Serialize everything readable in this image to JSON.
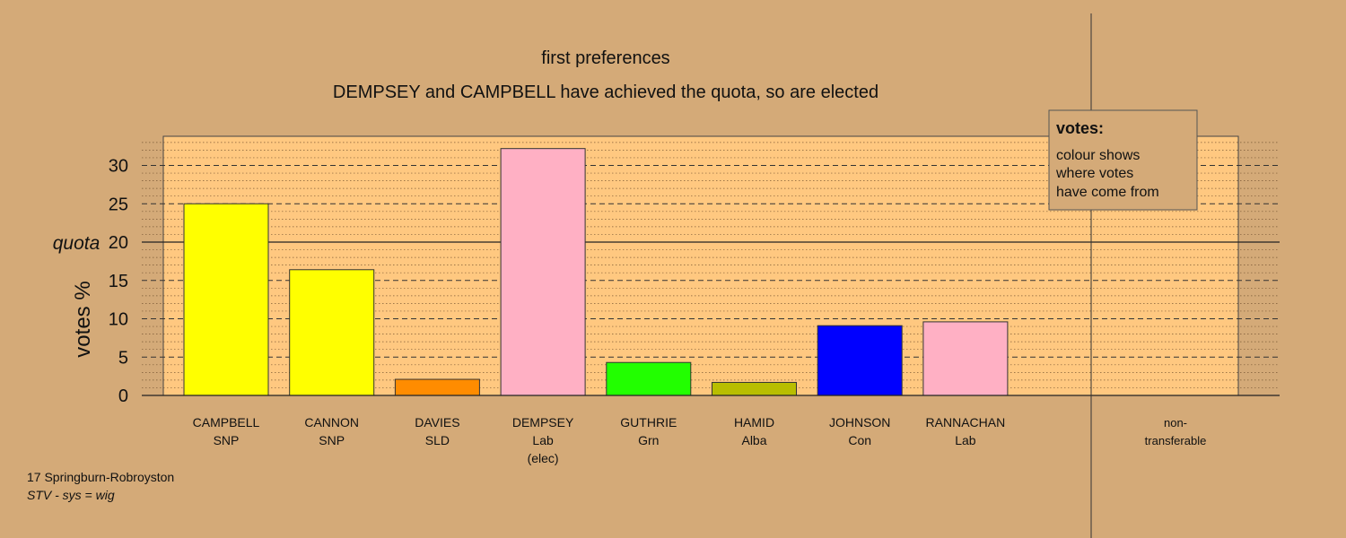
{
  "chart_data": {
    "type": "bar",
    "title": "first preferences",
    "subtitle": "DEMPSEY and CAMPBELL have achieved the quota, so are elected",
    "ylabel": "votes %",
    "ylim": [
      0,
      33.5
    ],
    "yticks": [
      0,
      5,
      10,
      15,
      20,
      25,
      30
    ],
    "quota": 20,
    "quota_label": "quota",
    "grid": true,
    "bars": [
      {
        "name": "CAMPBELL",
        "party": "SNP",
        "extra": "",
        "value": 25.0,
        "color": "#ffff00"
      },
      {
        "name": "CANNON",
        "party": "SNP",
        "extra": "",
        "value": 16.4,
        "color": "#ffff00"
      },
      {
        "name": "DAVIES",
        "party": "SLD",
        "extra": "",
        "value": 2.1,
        "color": "#ff8c00"
      },
      {
        "name": "DEMPSEY",
        "party": "Lab",
        "extra": "(elec)",
        "value": 32.2,
        "color": "#ffb0c4"
      },
      {
        "name": "GUTHRIE",
        "party": "Grn",
        "extra": "",
        "value": 4.3,
        "color": "#22ff00"
      },
      {
        "name": "HAMID",
        "party": "Alba",
        "extra": "",
        "value": 1.7,
        "color": "#b8be00"
      },
      {
        "name": "JOHNSON",
        "party": "Con",
        "extra": "",
        "value": 9.1,
        "color": "#0000ff"
      },
      {
        "name": "RANNACHAN",
        "party": "Lab",
        "extra": "",
        "value": 9.6,
        "color": "#ffb0c4"
      }
    ],
    "nontransferable": {
      "line1": "non-",
      "line2": "transferable",
      "value": 0
    },
    "legend": {
      "title": "votes:",
      "lines": [
        "colour shows",
        "where votes",
        "have come from"
      ],
      "placement": "top-right"
    }
  },
  "footer": {
    "ward": "17 Springburn-Robroyston",
    "system": "STV - sys = wig"
  },
  "colors": {
    "background": "#d4aa78",
    "plot_area": "#ffc880",
    "legend_bg": "#d4aa78"
  }
}
